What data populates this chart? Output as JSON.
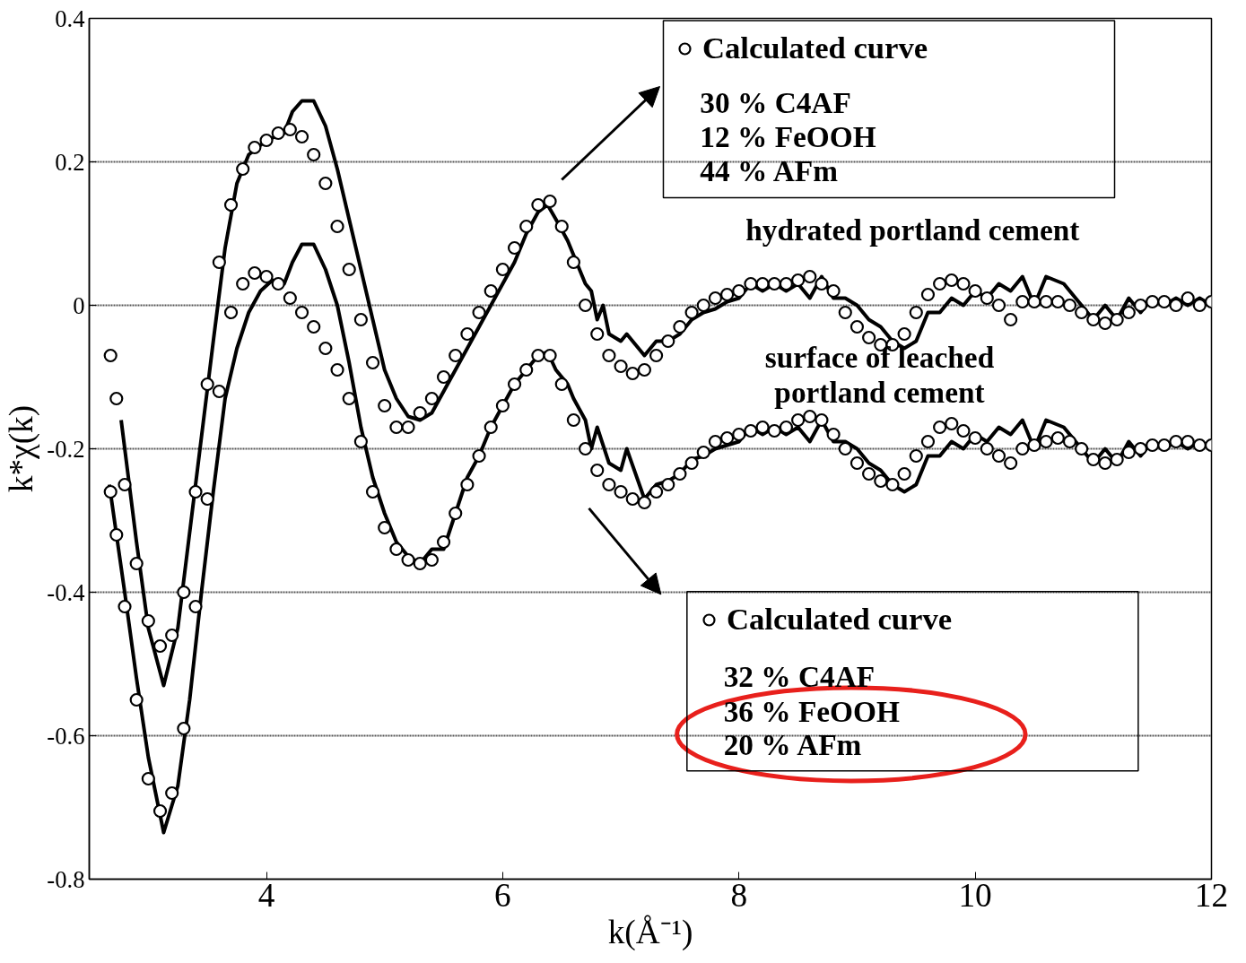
{
  "chart_data": {
    "type": "line",
    "xlabel": "k(Å⁻¹)",
    "ylabel": "k*χ(k)",
    "xlim": [
      2.5,
      12
    ],
    "xticks": [
      4,
      6,
      8,
      10,
      12
    ],
    "ylim": [
      -0.8,
      0.4
    ],
    "yticks": [
      -0.8,
      -0.6,
      -0.4,
      -0.2,
      0,
      0.2,
      0.4
    ],
    "grid": "y",
    "legend": "top right",
    "line_style": "solid",
    "series": [
      {
        "color": "#000000",
        "x": [
          2.77,
          2.9,
          3.0,
          3.13,
          3.25,
          3.4,
          3.55,
          3.65,
          3.75,
          3.85,
          4.0,
          4.15,
          4.22,
          4.3,
          4.4,
          4.5,
          4.6,
          4.7,
          4.8,
          4.9,
          5.0,
          5.1,
          5.2,
          5.3,
          5.4,
          5.5,
          5.6,
          5.7,
          5.8,
          5.9,
          6.0,
          6.1,
          6.2,
          6.3,
          6.38,
          6.45,
          6.55,
          6.6,
          6.7,
          6.75,
          6.8,
          6.85,
          6.9,
          7.0,
          7.05,
          7.2,
          7.3,
          7.4,
          7.5,
          7.6,
          7.7,
          7.8,
          7.9,
          8.0,
          8.1,
          8.2,
          8.3,
          8.4,
          8.5,
          8.6,
          8.7,
          8.8,
          8.9,
          9.0,
          9.1,
          9.2,
          9.3,
          9.4,
          9.5,
          9.55,
          9.6,
          9.7,
          9.8,
          9.9,
          10.0,
          10.1,
          10.2,
          10.3,
          10.4,
          10.5,
          10.6,
          10.75,
          10.9,
          11.0,
          11.1,
          11.2,
          11.3,
          11.4,
          11.5,
          11.6,
          11.7,
          11.8,
          11.9,
          12.0
        ],
        "values": [
          -0.16,
          -0.33,
          -0.45,
          -0.53,
          -0.45,
          -0.25,
          -0.05,
          0.08,
          0.17,
          0.21,
          0.23,
          0.24,
          0.27,
          0.285,
          0.285,
          0.25,
          0.19,
          0.12,
          0.05,
          -0.02,
          -0.09,
          -0.13,
          -0.155,
          -0.16,
          -0.15,
          -0.12,
          -0.09,
          -0.06,
          -0.03,
          0.0,
          0.03,
          0.06,
          0.1,
          0.13,
          0.14,
          0.12,
          0.09,
          0.07,
          0.03,
          0.02,
          -0.02,
          0.0,
          -0.04,
          -0.05,
          -0.04,
          -0.07,
          -0.05,
          -0.05,
          -0.04,
          -0.02,
          -0.01,
          -0.005,
          0.005,
          0.01,
          0.03,
          0.02,
          0.03,
          0.02,
          0.03,
          0.01,
          0.04,
          0.01,
          0.01,
          0.0,
          -0.02,
          -0.03,
          -0.05,
          -0.06,
          -0.05,
          -0.03,
          -0.01,
          -0.01,
          0.01,
          0.0,
          0.02,
          0.01,
          0.03,
          0.02,
          0.04,
          0.0,
          0.04,
          0.03,
          0.0,
          -0.02,
          0.0,
          -0.02,
          0.01,
          -0.01,
          0.01,
          0.0,
          0.01,
          0.0,
          0.01,
          0.0
        ]
      },
      {
        "color": "#000000",
        "x": [
          2.67,
          2.8,
          2.9,
          3.0,
          3.13,
          3.25,
          3.35,
          3.45,
          3.55,
          3.65,
          3.75,
          3.85,
          3.95,
          4.05,
          4.15,
          4.22,
          4.3,
          4.4,
          4.5,
          4.6,
          4.7,
          4.8,
          4.9,
          5.0,
          5.1,
          5.2,
          5.3,
          5.4,
          5.5,
          5.6,
          5.7,
          5.8,
          5.9,
          6.0,
          6.1,
          6.2,
          6.3,
          6.38,
          6.45,
          6.55,
          6.6,
          6.7,
          6.75,
          6.8,
          6.9,
          7.0,
          7.05,
          7.2,
          7.3,
          7.4,
          7.5,
          7.6,
          7.7,
          7.8,
          7.9,
          8.0,
          8.1,
          8.2,
          8.3,
          8.4,
          8.5,
          8.6,
          8.7,
          8.8,
          8.9,
          9.0,
          9.1,
          9.2,
          9.3,
          9.4,
          9.5,
          9.55,
          9.6,
          9.7,
          9.8,
          9.9,
          10.0,
          10.1,
          10.2,
          10.3,
          10.4,
          10.5,
          10.6,
          10.75,
          10.9,
          11.0,
          11.1,
          11.2,
          11.3,
          11.4,
          11.5,
          11.6,
          11.7,
          11.8,
          11.9,
          12.0
        ],
        "values": [
          -0.25,
          -0.4,
          -0.52,
          -0.63,
          -0.735,
          -0.67,
          -0.55,
          -0.4,
          -0.26,
          -0.13,
          -0.06,
          -0.01,
          0.02,
          0.035,
          0.03,
          0.06,
          0.085,
          0.085,
          0.05,
          0.0,
          -0.08,
          -0.17,
          -0.24,
          -0.29,
          -0.33,
          -0.35,
          -0.36,
          -0.34,
          -0.34,
          -0.29,
          -0.24,
          -0.21,
          -0.17,
          -0.14,
          -0.11,
          -0.09,
          -0.07,
          -0.065,
          -0.09,
          -0.11,
          -0.13,
          -0.16,
          -0.2,
          -0.17,
          -0.22,
          -0.23,
          -0.2,
          -0.27,
          -0.25,
          -0.245,
          -0.235,
          -0.215,
          -0.21,
          -0.2,
          -0.195,
          -0.19,
          -0.17,
          -0.18,
          -0.17,
          -0.18,
          -0.17,
          -0.19,
          -0.16,
          -0.19,
          -0.19,
          -0.2,
          -0.22,
          -0.23,
          -0.25,
          -0.26,
          -0.25,
          -0.23,
          -0.21,
          -0.21,
          -0.19,
          -0.2,
          -0.18,
          -0.19,
          -0.17,
          -0.18,
          -0.16,
          -0.2,
          -0.16,
          -0.17,
          -0.2,
          -0.22,
          -0.2,
          -0.22,
          -0.19,
          -0.21,
          -0.19,
          -0.2,
          -0.19,
          -0.2,
          -0.19,
          -0.2
        ]
      },
      {
        "type": "scatter",
        "name": "Calculated curve",
        "color": "#000000",
        "marker": "circle",
        "x": [
          2.68,
          2.73,
          2.8,
          2.9,
          3.0,
          3.1,
          3.2,
          3.3,
          3.4,
          3.5,
          3.6,
          3.7,
          3.8,
          3.9,
          4.0,
          4.1,
          4.2,
          4.3,
          4.4,
          4.5,
          4.6,
          4.7,
          4.8,
          4.9,
          5.0,
          5.1,
          5.2,
          5.3,
          5.4,
          5.5,
          5.6,
          5.7,
          5.8,
          5.9,
          6.0,
          6.1,
          6.2,
          6.3,
          6.4,
          6.5,
          6.6,
          6.7,
          6.8,
          6.9,
          7.0,
          7.1,
          7.2,
          7.3,
          7.4,
          7.5,
          7.6,
          7.7,
          7.8,
          7.9,
          8.0,
          8.1,
          8.2,
          8.3,
          8.4,
          8.5,
          8.6,
          8.7,
          8.8,
          8.9,
          9.0,
          9.1,
          9.2,
          9.3,
          9.4,
          9.5,
          9.6,
          9.7,
          9.8,
          9.9,
          10.0,
          10.1,
          10.2,
          10.3,
          10.4,
          10.5,
          10.6,
          10.7,
          10.8,
          10.9,
          11.0,
          11.1,
          11.2,
          11.3,
          11.4,
          11.5,
          11.6,
          11.7,
          11.8,
          11.9,
          12.0
        ],
        "values": [
          -0.07,
          -0.13,
          -0.25,
          -0.36,
          -0.44,
          -0.475,
          -0.46,
          -0.4,
          -0.26,
          -0.11,
          0.06,
          0.14,
          0.19,
          0.22,
          0.23,
          0.24,
          0.245,
          0.235,
          0.21,
          0.17,
          0.11,
          0.05,
          -0.02,
          -0.08,
          -0.14,
          -0.17,
          -0.17,
          -0.15,
          -0.13,
          -0.1,
          -0.07,
          -0.04,
          -0.01,
          0.02,
          0.05,
          0.08,
          0.11,
          0.14,
          0.145,
          0.11,
          0.06,
          0.0,
          -0.04,
          -0.07,
          -0.085,
          -0.095,
          -0.09,
          -0.07,
          -0.05,
          -0.03,
          -0.01,
          0.0,
          0.01,
          0.015,
          0.02,
          0.03,
          0.03,
          0.03,
          0.03,
          0.035,
          0.04,
          0.03,
          0.02,
          -0.01,
          -0.03,
          -0.045,
          -0.055,
          -0.055,
          -0.04,
          -0.01,
          0.015,
          0.03,
          0.035,
          0.03,
          0.02,
          0.01,
          0.0,
          -0.02,
          0.005,
          0.005,
          0.005,
          0.005,
          0.0,
          -0.01,
          -0.02,
          -0.025,
          -0.02,
          -0.01,
          0.0,
          0.005,
          0.005,
          0.0,
          0.01,
          0.0,
          0.005
        ]
      },
      {
        "type": "scatter",
        "name": "Calculated curve",
        "color": "#000000",
        "marker": "circle",
        "x": [
          2.68,
          2.73,
          2.8,
          2.9,
          3.0,
          3.1,
          3.2,
          3.3,
          3.4,
          3.5,
          3.6,
          3.7,
          3.8,
          3.9,
          4.0,
          4.1,
          4.2,
          4.3,
          4.4,
          4.5,
          4.6,
          4.7,
          4.8,
          4.9,
          5.0,
          5.1,
          5.2,
          5.3,
          5.4,
          5.5,
          5.6,
          5.7,
          5.8,
          5.9,
          6.0,
          6.1,
          6.2,
          6.3,
          6.4,
          6.5,
          6.6,
          6.7,
          6.8,
          6.9,
          7.0,
          7.1,
          7.2,
          7.3,
          7.4,
          7.5,
          7.6,
          7.7,
          7.8,
          7.9,
          8.0,
          8.1,
          8.2,
          8.3,
          8.4,
          8.5,
          8.6,
          8.7,
          8.8,
          8.9,
          9.0,
          9.1,
          9.2,
          9.3,
          9.4,
          9.5,
          9.6,
          9.7,
          9.8,
          9.9,
          10.0,
          10.1,
          10.2,
          10.3,
          10.4,
          10.5,
          10.6,
          10.7,
          10.8,
          10.9,
          11.0,
          11.1,
          11.2,
          11.3,
          11.4,
          11.5,
          11.6,
          11.7,
          11.8,
          11.9,
          12.0
        ],
        "values": [
          -0.26,
          -0.32,
          -0.42,
          -0.55,
          -0.66,
          -0.705,
          -0.68,
          -0.59,
          -0.42,
          -0.27,
          -0.12,
          -0.01,
          0.03,
          0.045,
          0.04,
          0.03,
          0.01,
          -0.01,
          -0.03,
          -0.06,
          -0.09,
          -0.13,
          -0.19,
          -0.26,
          -0.31,
          -0.34,
          -0.355,
          -0.36,
          -0.355,
          -0.33,
          -0.29,
          -0.25,
          -0.21,
          -0.17,
          -0.14,
          -0.11,
          -0.09,
          -0.07,
          -0.07,
          -0.11,
          -0.16,
          -0.2,
          -0.23,
          -0.25,
          -0.26,
          -0.27,
          -0.275,
          -0.26,
          -0.25,
          -0.235,
          -0.22,
          -0.205,
          -0.19,
          -0.185,
          -0.18,
          -0.175,
          -0.17,
          -0.175,
          -0.17,
          -0.16,
          -0.155,
          -0.16,
          -0.18,
          -0.2,
          -0.22,
          -0.235,
          -0.245,
          -0.25,
          -0.235,
          -0.21,
          -0.19,
          -0.17,
          -0.165,
          -0.175,
          -0.185,
          -0.2,
          -0.21,
          -0.22,
          -0.2,
          -0.195,
          -0.19,
          -0.185,
          -0.19,
          -0.2,
          -0.215,
          -0.22,
          -0.215,
          -0.205,
          -0.2,
          -0.195,
          -0.195,
          -0.19,
          -0.19,
          -0.195,
          -0.195
        ]
      }
    ],
    "annotations": [
      "30 % C4AF",
      "12 % FeOOH",
      "44 % AFm",
      "32 % C4AF",
      "36 % FeOOH",
      "20 % AFm",
      "hydrated portland cement",
      "surface of leached",
      "portland cement"
    ]
  }
}
